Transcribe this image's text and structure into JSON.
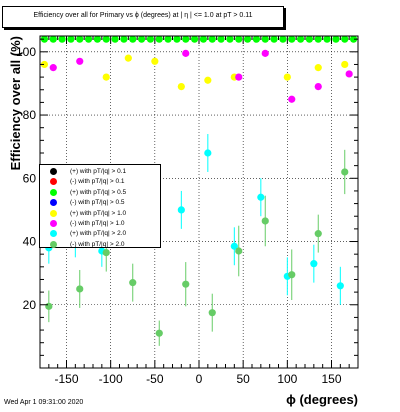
{
  "chart_data": {
    "type": "scatter",
    "title": "Efficiency over all for Primary vs ϕ (degrees) at | η | <= 1.0 at pT > 0.11",
    "xlabel": "ϕ (degrees)",
    "ylabel": "Efficiency over all (%)",
    "xlim": [
      -180,
      180
    ],
    "ylim": [
      0,
      105
    ],
    "xticks": [
      -150,
      -100,
      -50,
      0,
      50,
      100,
      150
    ],
    "yticks": [
      20,
      40,
      60,
      80,
      100
    ],
    "grid": true,
    "legend_placement": "middle-left",
    "series": [
      {
        "name": "(+) with pT/|q| > 0.1",
        "color": "#000000",
        "points": [],
        "err": []
      },
      {
        "name": "(-) with pT/|q| > 0.1",
        "color": "#ff0000",
        "points": [],
        "err": []
      },
      {
        "name": "(+) with pT/|q| > 0.5",
        "color": "#00ff00",
        "points": [
          [
            -175,
            104
          ],
          [
            -165,
            104
          ],
          [
            -155,
            104
          ],
          [
            -145,
            104
          ],
          [
            -135,
            104
          ],
          [
            -125,
            104
          ],
          [
            -115,
            104
          ],
          [
            -105,
            104
          ],
          [
            -95,
            104
          ],
          [
            -85,
            104
          ],
          [
            -75,
            104
          ],
          [
            -65,
            104
          ],
          [
            -55,
            104
          ],
          [
            -45,
            104
          ],
          [
            -35,
            104
          ],
          [
            -25,
            104
          ],
          [
            -15,
            104
          ],
          [
            -5,
            104
          ],
          [
            5,
            104
          ],
          [
            15,
            104
          ],
          [
            25,
            104
          ],
          [
            35,
            104
          ],
          [
            45,
            104
          ],
          [
            55,
            104
          ],
          [
            65,
            104
          ],
          [
            75,
            104
          ],
          [
            85,
            104
          ],
          [
            95,
            104
          ],
          [
            105,
            104
          ],
          [
            115,
            104
          ],
          [
            125,
            104
          ],
          [
            135,
            104
          ],
          [
            145,
            104
          ],
          [
            155,
            104
          ],
          [
            165,
            104
          ],
          [
            175,
            104
          ]
        ],
        "err": []
      },
      {
        "name": "(-) with pT/|q| > 0.5",
        "color": "#0000ff",
        "points": [],
        "err": []
      },
      {
        "name": "(+) with pT/|q| > 1.0",
        "color": "#ffff00",
        "points": [
          [
            -175,
            96
          ],
          [
            -105,
            92
          ],
          [
            -80,
            98
          ],
          [
            -50,
            97
          ],
          [
            -20,
            89
          ],
          [
            10,
            91
          ],
          [
            40,
            92
          ],
          [
            100,
            92
          ],
          [
            135,
            95
          ],
          [
            165,
            96
          ]
        ],
        "err": []
      },
      {
        "name": "(-) with pT/|q| > 1.0",
        "color": "#ff00ff",
        "points": [
          [
            -165,
            95
          ],
          [
            -135,
            97
          ],
          [
            -15,
            99.5
          ],
          [
            45,
            92
          ],
          [
            75,
            99.5
          ],
          [
            105,
            85
          ],
          [
            135,
            89
          ],
          [
            170,
            93
          ]
        ],
        "err": []
      },
      {
        "name": "(+) with pT/|q| > 2.0",
        "color": "#00ffff",
        "points": [
          [
            -170,
            38
          ],
          [
            -140,
            40
          ],
          [
            -110,
            37
          ],
          [
            -50,
            55
          ],
          [
            -20,
            50
          ],
          [
            10,
            68
          ],
          [
            40,
            38.5
          ],
          [
            70,
            54
          ],
          [
            100,
            29
          ],
          [
            130,
            33
          ],
          [
            160,
            26
          ]
        ],
        "err": [
          5,
          5,
          5,
          7,
          6,
          6,
          6,
          6,
          6,
          6,
          6
        ]
      },
      {
        "name": "(-) with pT/|q| > 2.0",
        "color": "#66cc66",
        "points": [
          [
            -170,
            19.5
          ],
          [
            -135,
            25
          ],
          [
            -105,
            36.5
          ],
          [
            -75,
            27
          ],
          [
            -45,
            11
          ],
          [
            -15,
            26.5
          ],
          [
            15,
            17.5
          ],
          [
            45,
            37
          ],
          [
            75,
            46.5
          ],
          [
            105,
            29.5
          ],
          [
            135,
            42.5
          ],
          [
            165,
            62
          ]
        ],
        "err": [
          5,
          6,
          6,
          6,
          4,
          7,
          6,
          8,
          8,
          8,
          6,
          7
        ]
      }
    ]
  },
  "footer": {
    "timestamp": "Wed Apr  1 09:31:00 2020"
  }
}
